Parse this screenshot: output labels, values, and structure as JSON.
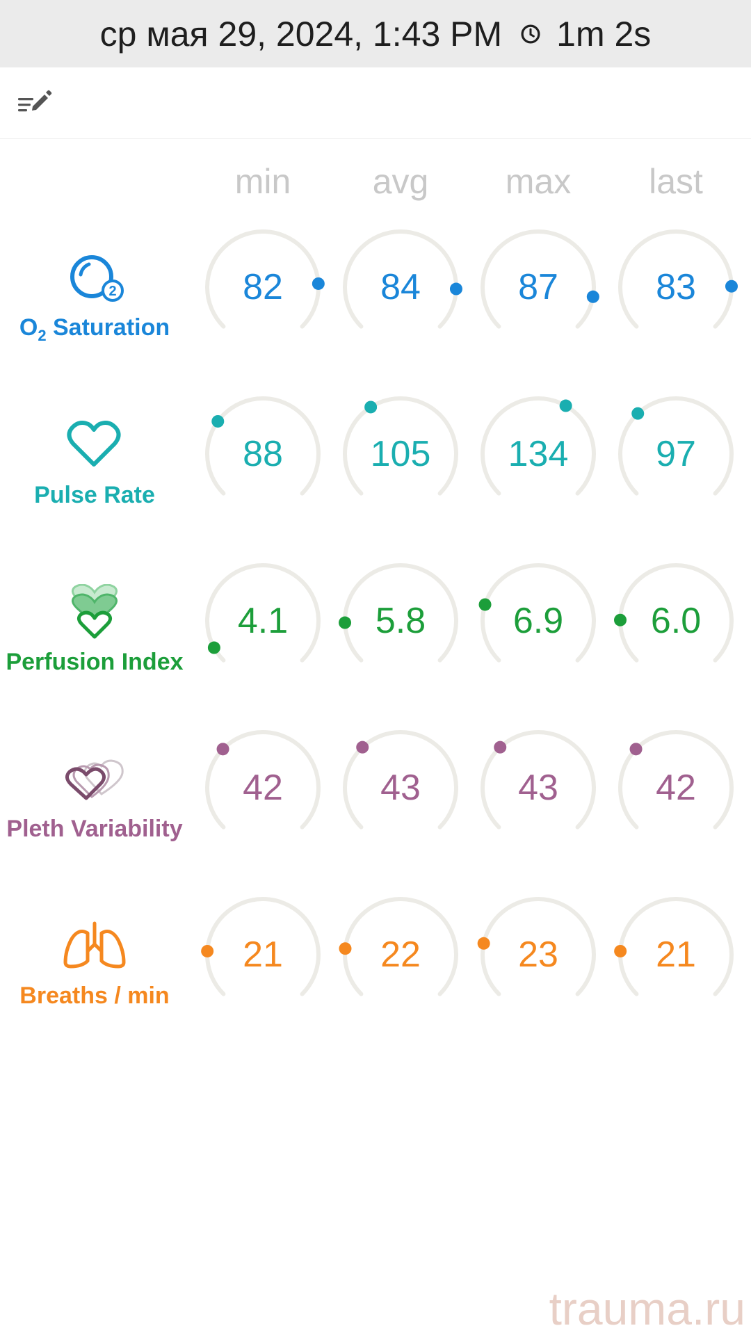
{
  "header": {
    "datetime": "ср мая 29, 2024, 1:43 PM",
    "duration": "1m 2s"
  },
  "columns": [
    "min",
    "avg",
    "max",
    "last"
  ],
  "colors": {
    "track": "#ecebe6",
    "header_bg": "#ebebeb"
  },
  "metrics": [
    {
      "key": "o2",
      "label_main": "O",
      "label_sub": "2",
      "label_rest": " Saturation",
      "icon": "oxygen-bubble-icon",
      "color": "#1a86d9",
      "values": [
        "82",
        "84",
        "87",
        "83"
      ],
      "levels": [
        0.82,
        0.84,
        0.87,
        0.83
      ]
    },
    {
      "key": "pulse",
      "label": "Pulse Rate",
      "icon": "heart-outline-icon",
      "color": "#1aaeb0",
      "values": [
        "88",
        "105",
        "134",
        "97"
      ],
      "levels": [
        0.3,
        0.38,
        0.61,
        0.34
      ]
    },
    {
      "key": "perfusion",
      "label": "Perfusion Index",
      "icon": "stacked-hearts-icon",
      "color": "#1c9e3a",
      "values": [
        "4.1",
        "5.8",
        "6.9",
        "6.0"
      ],
      "levels": [
        0.06,
        0.16,
        0.23,
        0.17
      ]
    },
    {
      "key": "pleth",
      "label": "Pleth Variability",
      "icon": "double-heart-icon",
      "color": "#a0608f",
      "values": [
        "42",
        "43",
        "43",
        "42"
      ],
      "levels": [
        0.33,
        0.34,
        0.34,
        0.33
      ]
    },
    {
      "key": "breaths",
      "label": "Breaths / min",
      "icon": "lungs-icon",
      "color": "#f5881f",
      "values": [
        "21",
        "22",
        "23",
        "21"
      ],
      "levels": [
        0.18,
        0.19,
        0.21,
        0.18
      ]
    }
  ],
  "watermark": "trauma.ru"
}
